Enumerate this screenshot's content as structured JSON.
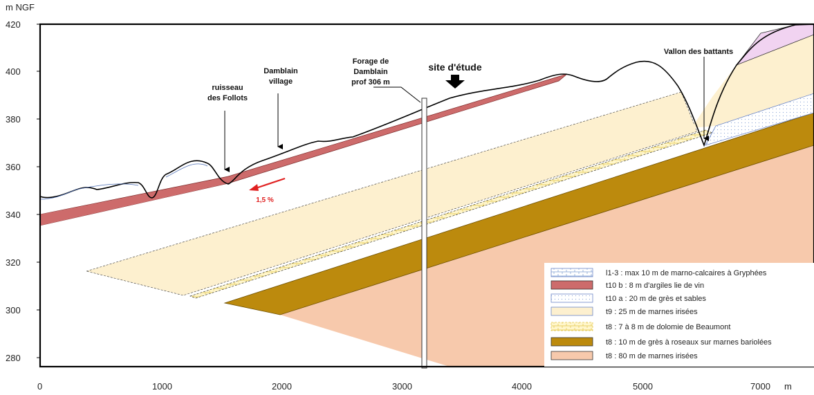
{
  "axes": {
    "y_unit": "m NGF",
    "x_unit": "m",
    "y_ticks": [
      "420",
      "400",
      "380",
      "360",
      "340",
      "320",
      "300",
      "280"
    ],
    "x_ticks": [
      "0",
      "1000",
      "2000",
      "3000",
      "4000",
      "5000",
      "7000"
    ]
  },
  "annotations": {
    "ruisseau_1": "ruisseau",
    "ruisseau_2": "des Follots",
    "damblain_1": "Damblain",
    "damblain_2": "village",
    "forage_1": "Forage de",
    "forage_2": "Damblain",
    "forage_3": "prof 306 m",
    "site": "site d'étude",
    "vallon": "Vallon des battants",
    "slope": "1,5 %"
  },
  "legend": [
    {
      "label": "l1-3 : max 10 m de marno-calcaires à Gryphées",
      "color": "#ffffff",
      "pattern": "brick-blue"
    },
    {
      "label": "t10 b : 8 m d'argiles lie de vin",
      "color": "#cd6b6b",
      "pattern": "solid"
    },
    {
      "label": "t10 a : 20 m de grès et sables",
      "color": "#ffffff",
      "pattern": "dots-blue"
    },
    {
      "label": "t9 : 25 m de marnes irisées",
      "color": "#fdf0cf",
      "pattern": "solid"
    },
    {
      "label": "t8 :  7 à 8 m de dolomie de Beaumont",
      "color": "#fff6cc",
      "pattern": "brick-yellow"
    },
    {
      "label": "t8 :  10 m de grès à roseaux sur marnes bariolées",
      "color": "#bc8a0d",
      "pattern": "solid"
    },
    {
      "label": "t8 :  80 m de marnes irisées",
      "color": "#f7c9ac",
      "pattern": "solid"
    }
  ],
  "colors": {
    "clay_red": "#cd6b6b",
    "sandstone_brown": "#bc8a0d",
    "marl_cream": "#fdf0cf",
    "marl_salmon": "#f7c9ac",
    "slope_arrow": "#e02020"
  }
}
